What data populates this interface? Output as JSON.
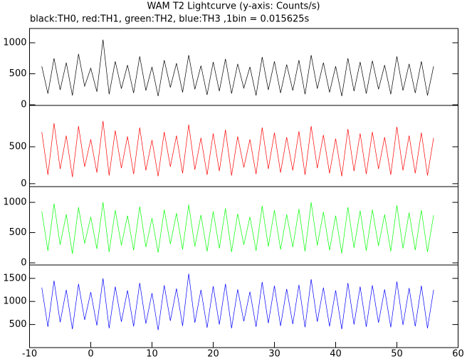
{
  "chart_data": [
    {
      "type": "line",
      "title": "WAM T2 Lightcurve (y-axis: Counts/s)",
      "subtitle": "black:TH0, red:TH1, green:TH2, blue:TH3 ,1bin = 0.015625s",
      "x": [
        -8,
        -7,
        -6,
        -5,
        -4,
        -3,
        -2,
        -1,
        0,
        1,
        2,
        3,
        4,
        5,
        6,
        7,
        8,
        9,
        10,
        11,
        12,
        13,
        14,
        15,
        16,
        17,
        18,
        19,
        20,
        21,
        22,
        23,
        24,
        25,
        26,
        27,
        28,
        29,
        30,
        31,
        32,
        33,
        34,
        35,
        36,
        37,
        38,
        39,
        40,
        41,
        42,
        43,
        44,
        45,
        46,
        47,
        48,
        49,
        50,
        51,
        52,
        53,
        54,
        55,
        56
      ],
      "values": [
        620,
        180,
        750,
        240,
        680,
        150,
        820,
        300,
        590,
        210,
        1050,
        170,
        700,
        260,
        640,
        190,
        780,
        230,
        610,
        140,
        720,
        280,
        670,
        200,
        800,
        250,
        630,
        160,
        690,
        220,
        740,
        180,
        660,
        270,
        610,
        150,
        770,
        240,
        700,
        190,
        650,
        230,
        720,
        170,
        800,
        260,
        680,
        200,
        620,
        140,
        750,
        220,
        690,
        180,
        710,
        250,
        640,
        170,
        780,
        230,
        660,
        190,
        700,
        150,
        620
      ],
      "color": "#000000",
      "xlim": [
        -10,
        60
      ],
      "ylim": [
        -10,
        1230
      ],
      "yticks": [
        0,
        500,
        1000
      ]
    },
    {
      "type": "line",
      "x": [
        -8,
        -7,
        -6,
        -5,
        -4,
        -3,
        -2,
        -1,
        0,
        1,
        2,
        3,
        4,
        5,
        6,
        7,
        8,
        9,
        10,
        11,
        12,
        13,
        14,
        15,
        16,
        17,
        18,
        19,
        20,
        21,
        22,
        23,
        24,
        25,
        26,
        27,
        28,
        29,
        30,
        31,
        32,
        33,
        34,
        35,
        36,
        37,
        38,
        39,
        40,
        41,
        42,
        43,
        44,
        45,
        46,
        47,
        48,
        49,
        50,
        51,
        52,
        53,
        54,
        55,
        56
      ],
      "values": [
        700,
        120,
        820,
        200,
        650,
        90,
        780,
        230,
        600,
        150,
        850,
        110,
        720,
        210,
        640,
        130,
        760,
        180,
        590,
        100,
        700,
        230,
        650,
        140,
        800,
        190,
        620,
        120,
        680,
        170,
        730,
        110,
        640,
        220,
        600,
        130,
        760,
        200,
        690,
        150,
        630,
        180,
        710,
        120,
        780,
        210,
        660,
        140,
        610,
        100,
        740,
        170,
        680,
        130,
        700,
        200,
        630,
        120,
        770,
        180,
        650,
        140,
        690,
        110,
        620
      ],
      "color": "#ff0000",
      "xlim": [
        -10,
        60
      ],
      "ylim": [
        -40,
        1060
      ],
      "yticks": [
        0,
        500
      ]
    },
    {
      "type": "line",
      "x": [
        -8,
        -7,
        -6,
        -5,
        -4,
        -3,
        -2,
        -1,
        0,
        1,
        2,
        3,
        4,
        5,
        6,
        7,
        8,
        9,
        10,
        11,
        12,
        13,
        14,
        15,
        16,
        17,
        18,
        19,
        20,
        21,
        22,
        23,
        24,
        25,
        26,
        27,
        28,
        29,
        30,
        31,
        32,
        33,
        34,
        35,
        36,
        37,
        38,
        39,
        40,
        41,
        42,
        43,
        44,
        45,
        46,
        47,
        48,
        49,
        50,
        51,
        52,
        53,
        54,
        55,
        56
      ],
      "values": [
        850,
        200,
        980,
        300,
        800,
        150,
        920,
        320,
        760,
        230,
        1000,
        180,
        870,
        290,
        780,
        210,
        930,
        260,
        740,
        170,
        880,
        310,
        820,
        220,
        960,
        270,
        790,
        190,
        850,
        240,
        900,
        180,
        810,
        300,
        760,
        200,
        940,
        270,
        870,
        220,
        800,
        260,
        890,
        190,
        1000,
        290,
        840,
        210,
        780,
        160,
        920,
        250,
        860,
        200,
        880,
        280,
        800,
        190,
        950,
        240,
        830,
        210,
        870,
        180,
        790
      ],
      "color": "#00ff00",
      "xlim": [
        -10,
        60
      ],
      "ylim": [
        -35,
        1260
      ],
      "yticks": [
        0,
        500,
        1000
      ]
    },
    {
      "type": "line",
      "x": [
        -8,
        -7,
        -6,
        -5,
        -4,
        -3,
        -2,
        -1,
        0,
        1,
        2,
        3,
        4,
        5,
        6,
        7,
        8,
        9,
        10,
        11,
        12,
        13,
        14,
        15,
        16,
        17,
        18,
        19,
        20,
        21,
        22,
        23,
        24,
        25,
        26,
        27,
        28,
        29,
        30,
        31,
        32,
        33,
        34,
        35,
        36,
        37,
        38,
        39,
        40,
        41,
        42,
        43,
        44,
        45,
        46,
        47,
        48,
        49,
        50,
        51,
        52,
        53,
        54,
        55,
        56
      ],
      "values": [
        1300,
        450,
        1450,
        550,
        1250,
        400,
        1380,
        600,
        1200,
        480,
        1500,
        420,
        1320,
        560,
        1240,
        460,
        1400,
        520,
        1180,
        380,
        1350,
        580,
        1280,
        470,
        1600,
        540,
        1250,
        430,
        1330,
        500,
        1380,
        420,
        1260,
        570,
        1210,
        450,
        1420,
        530,
        1340,
        470,
        1270,
        510,
        1360,
        440,
        1480,
        560,
        1300,
        460,
        1240,
        400,
        1400,
        500,
        1320,
        450,
        1350,
        540,
        1260,
        440,
        1430,
        490,
        1290,
        460,
        1340,
        420,
        1250
      ],
      "color": "#0000ff",
      "xlim": [
        -10,
        60
      ],
      "ylim": [
        0,
        1790
      ],
      "yticks": [
        500,
        1000,
        1500
      ],
      "xticks": [
        -10,
        0,
        10,
        20,
        30,
        40,
        50,
        60
      ]
    }
  ]
}
